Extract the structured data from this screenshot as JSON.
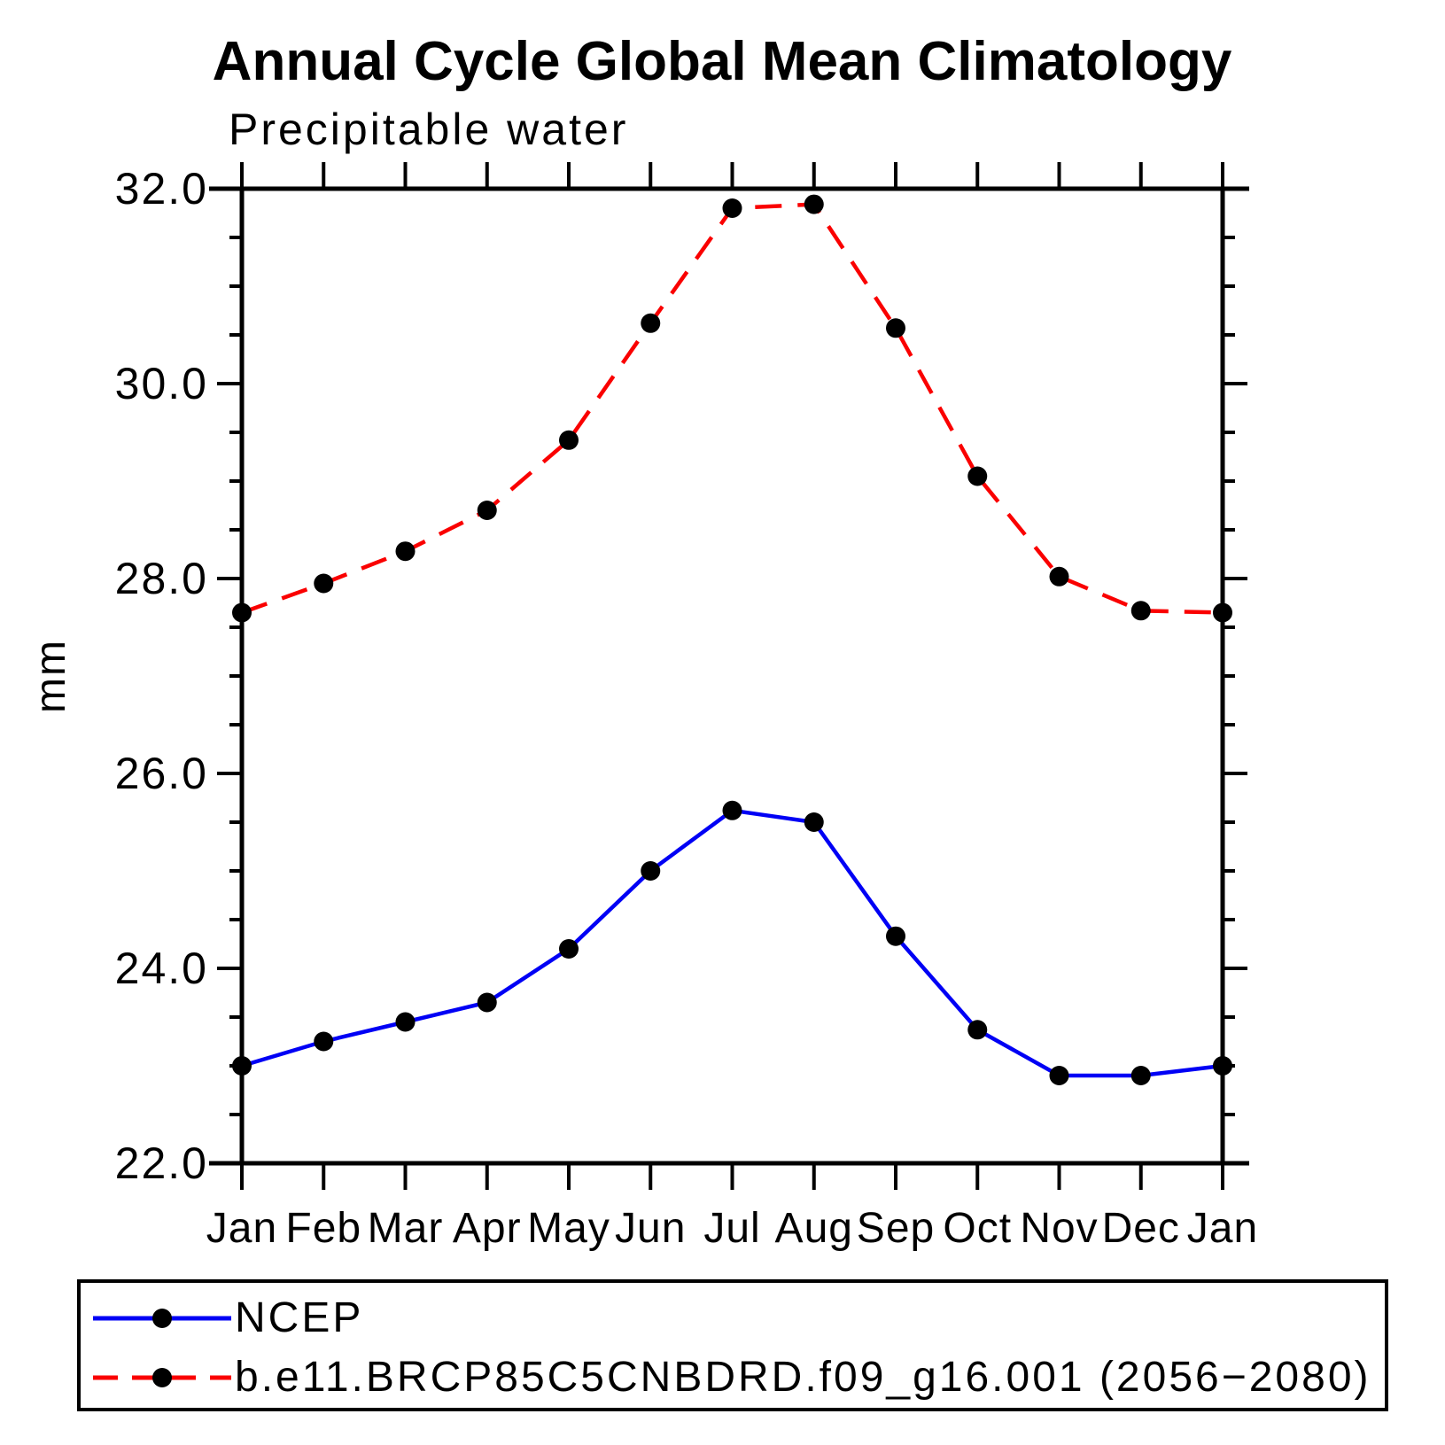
{
  "window": {
    "background": "#ffffff",
    "text_color": "#000000"
  },
  "chart_data": {
    "type": "line",
    "title": "Annual Cycle Global Mean Climatology",
    "subtitle": "Precipitable water",
    "ylabel": "mm",
    "xlabel": "",
    "grid": false,
    "legend_position": "bottom-left-box",
    "categories": [
      "Jan",
      "Feb",
      "Mar",
      "Apr",
      "May",
      "Jun",
      "Jul",
      "Aug",
      "Sep",
      "Oct",
      "Nov",
      "Dec",
      "Jan"
    ],
    "y_axis": {
      "min": 22.0,
      "max": 32.0,
      "major_step": 2.0,
      "minor_step": 0.5,
      "tick_labels": [
        "22.0",
        "24.0",
        "26.0",
        "28.0",
        "30.0",
        "32.0"
      ]
    },
    "series": [
      {
        "name": "NCEP",
        "color": "#0000f5",
        "line_style": "solid",
        "marker": "filled-circle",
        "marker_color": "#000000",
        "values": [
          23.0,
          23.25,
          23.45,
          23.65,
          24.2,
          25.0,
          25.62,
          25.5,
          24.33,
          23.37,
          22.9,
          22.9,
          23.0
        ]
      },
      {
        "name": "b.e11.BRCP85C5CNBDRD.f09_g16.001 (2056−2080)",
        "color": "#fa0000",
        "line_style": "dashed",
        "marker": "filled-circle",
        "marker_color": "#000000",
        "values": [
          27.65,
          27.95,
          28.28,
          28.7,
          29.42,
          30.62,
          31.8,
          31.84,
          30.57,
          29.05,
          28.02,
          27.67,
          27.65
        ]
      }
    ]
  }
}
